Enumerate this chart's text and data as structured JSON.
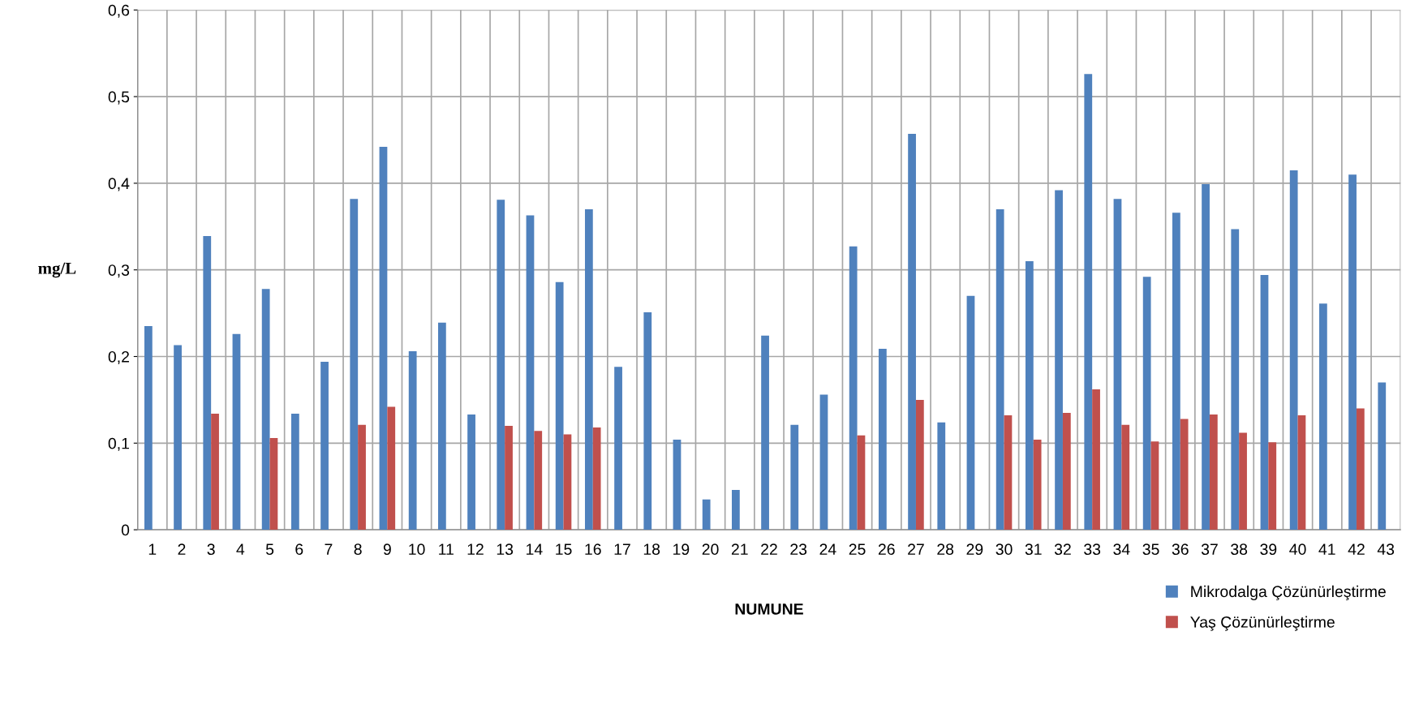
{
  "chart_data": {
    "type": "bar",
    "xlabel": "NUMUNE",
    "ylabel": "mg/L",
    "categories": [
      "1",
      "2",
      "3",
      "4",
      "5",
      "6",
      "7",
      "8",
      "9",
      "10",
      "11",
      "12",
      "13",
      "14",
      "15",
      "16",
      "17",
      "18",
      "19",
      "20",
      "21",
      "22",
      "23",
      "24",
      "25",
      "26",
      "27",
      "28",
      "29",
      "30",
      "31",
      "32",
      "33",
      "34",
      "35",
      "36",
      "37",
      "38",
      "39",
      "40",
      "41",
      "42",
      "43"
    ],
    "series": [
      {
        "name": "Mikrodalga Çözünürleştirme",
        "color": "#4f81bd",
        "values": [
          0.235,
          0.213,
          0.339,
          0.226,
          0.278,
          0.134,
          0.194,
          0.382,
          0.442,
          0.206,
          0.239,
          0.133,
          0.381,
          0.363,
          0.286,
          0.37,
          0.188,
          0.251,
          0.104,
          0.035,
          0.046,
          0.224,
          0.121,
          0.156,
          0.327,
          0.209,
          0.457,
          0.124,
          0.27,
          0.37,
          0.31,
          0.392,
          0.526,
          0.382,
          0.292,
          0.366,
          0.399,
          0.347,
          0.294,
          0.415,
          0.261,
          0.41,
          0.17
        ]
      },
      {
        "name": "Yaş Çözünürleştirme",
        "color": "#c0504d",
        "values": [
          null,
          null,
          0.134,
          null,
          0.106,
          null,
          null,
          0.121,
          0.142,
          null,
          null,
          null,
          0.12,
          0.114,
          0.11,
          0.118,
          null,
          null,
          null,
          null,
          null,
          null,
          null,
          null,
          0.109,
          null,
          0.15,
          null,
          null,
          0.132,
          0.104,
          0.135,
          0.162,
          0.121,
          0.102,
          0.128,
          0.133,
          0.112,
          0.101,
          0.132,
          null,
          0.14,
          null
        ]
      }
    ],
    "ylim": [
      0,
      0.6
    ],
    "yticks": [
      0,
      {
        "value": 0.1,
        "label": "0,1"
      },
      {
        "value": 0.2,
        "label": "0,2"
      },
      {
        "value": 0.3,
        "label": "0,3"
      },
      {
        "value": 0.4,
        "label": "0,4"
      },
      {
        "value": 0.5,
        "label": "0,5"
      },
      {
        "value": 0.6,
        "label": "0,6"
      }
    ],
    "grid": true,
    "legend": "bottom right"
  }
}
